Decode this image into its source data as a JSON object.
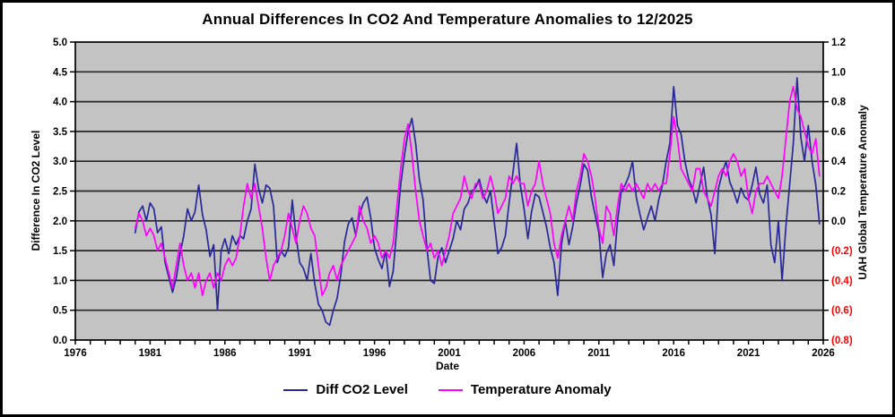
{
  "chart_data": {
    "type": "line",
    "title": "Annual Differences In CO2  And Temperature Anomalies to 12/2025",
    "grid": "horizontal-only",
    "legend_position": "bottom-center",
    "plot_background": "#c3c3c3",
    "gridline_color": "#262626",
    "axis_color": "#000000",
    "x_axis": {
      "title": "Date",
      "min": 1976,
      "max": 2026,
      "minor_step": 1,
      "major_step": 5,
      "tick_labels": [
        "1976",
        "1981",
        "1986",
        "1991",
        "1996",
        "2001",
        "2006",
        "2011",
        "2016",
        "2021",
        "2026"
      ]
    },
    "y_left": {
      "title": "Difference In CO2 Level",
      "min": 0,
      "max": 5,
      "step": 0.5,
      "tick_labels": [
        "0.0",
        "0.5",
        "1.0",
        "1.5",
        "2.0",
        "2.5",
        "3.0",
        "3.5",
        "4.0",
        "4.5",
        "5.0"
      ]
    },
    "y_right": {
      "title": "UAH Global Temperature Anomaly",
      "min": -0.8,
      "max": 1.2,
      "step": 0.2,
      "tick_labels": [
        "(0.8)",
        "(0.6)",
        "(0.4)",
        "(0.2)",
        "0.0",
        "0.2",
        "0.4",
        "0.6",
        "0.8",
        "1.0",
        "1.2"
      ],
      "negative_label_color": "#ff0000"
    },
    "x_start": 1980.0,
    "x_step": 0.25,
    "series": [
      {
        "name": "Diff CO2 Level",
        "axis": "left",
        "color": "#28289b",
        "values": [
          1.8,
          2.15,
          2.25,
          2.0,
          2.3,
          2.2,
          1.8,
          1.9,
          1.3,
          1.05,
          0.8,
          1.05,
          1.45,
          1.75,
          2.2,
          2.0,
          2.15,
          2.6,
          2.1,
          1.85,
          1.4,
          1.6,
          0.5,
          1.5,
          1.7,
          1.45,
          1.75,
          1.6,
          1.75,
          1.7,
          2.0,
          2.2,
          2.95,
          2.55,
          2.3,
          2.6,
          2.55,
          2.25,
          1.3,
          1.5,
          1.4,
          1.55,
          2.35,
          1.75,
          1.3,
          1.2,
          1.0,
          1.45,
          0.95,
          0.6,
          0.5,
          0.3,
          0.25,
          0.5,
          0.7,
          1.1,
          1.65,
          1.95,
          2.05,
          1.75,
          2.1,
          2.3,
          2.4,
          2.05,
          1.55,
          1.35,
          1.2,
          1.5,
          0.9,
          1.15,
          1.9,
          2.6,
          3.1,
          3.5,
          3.72,
          3.3,
          2.7,
          2.35,
          1.55,
          1.0,
          0.95,
          1.4,
          1.55,
          1.3,
          1.5,
          1.7,
          2.0,
          1.85,
          2.2,
          2.3,
          2.5,
          2.55,
          2.7,
          2.45,
          2.3,
          2.5,
          2.0,
          1.45,
          1.55,
          1.75,
          2.3,
          2.8,
          3.3,
          2.6,
          2.2,
          1.7,
          2.15,
          2.45,
          2.4,
          2.15,
          1.9,
          1.55,
          1.3,
          0.75,
          1.6,
          2.0,
          1.6,
          1.9,
          2.3,
          2.6,
          2.95,
          2.85,
          2.4,
          2.1,
          1.8,
          1.05,
          1.45,
          1.6,
          1.25,
          2.0,
          2.5,
          2.6,
          2.75,
          3.0,
          2.4,
          2.1,
          1.85,
          2.05,
          2.25,
          2.0,
          2.35,
          2.6,
          3.0,
          3.3,
          4.25,
          3.6,
          3.45,
          3.0,
          2.7,
          2.55,
          2.3,
          2.6,
          2.9,
          2.4,
          2.1,
          1.45,
          2.55,
          2.8,
          3.0,
          2.65,
          2.5,
          2.3,
          2.55,
          2.4,
          2.35,
          2.6,
          2.9,
          2.45,
          2.3,
          2.6,
          1.6,
          1.3,
          2.0,
          1.0,
          1.9,
          2.6,
          3.3,
          4.4,
          3.4,
          3.0,
          3.6,
          3.0,
          2.6,
          1.95
        ]
      },
      {
        "name": "Temperature Anomaly",
        "axis": "right",
        "color": "#ff00ff",
        "values": [
          -0.05,
          0.05,
          0.0,
          -0.1,
          -0.05,
          -0.1,
          -0.2,
          -0.15,
          -0.25,
          -0.35,
          -0.45,
          -0.3,
          -0.15,
          -0.3,
          -0.4,
          -0.35,
          -0.45,
          -0.35,
          -0.5,
          -0.4,
          -0.35,
          -0.45,
          -0.35,
          -0.4,
          -0.3,
          -0.25,
          -0.3,
          -0.25,
          -0.1,
          0.1,
          0.25,
          0.15,
          0.25,
          0.1,
          -0.05,
          -0.25,
          -0.4,
          -0.3,
          -0.25,
          -0.2,
          -0.1,
          0.05,
          -0.05,
          -0.15,
          0.0,
          0.1,
          0.05,
          -0.05,
          -0.1,
          -0.3,
          -0.5,
          -0.45,
          -0.35,
          -0.3,
          -0.4,
          -0.3,
          -0.25,
          -0.2,
          -0.15,
          -0.1,
          0.1,
          0.0,
          -0.05,
          -0.15,
          -0.1,
          -0.15,
          -0.25,
          -0.2,
          -0.25,
          -0.15,
          0.1,
          0.35,
          0.55,
          0.65,
          0.45,
          0.2,
          0.0,
          -0.1,
          -0.2,
          -0.15,
          -0.25,
          -0.2,
          -0.3,
          -0.2,
          -0.1,
          0.05,
          0.1,
          0.15,
          0.3,
          0.2,
          0.15,
          0.25,
          0.25,
          0.15,
          0.2,
          0.3,
          0.2,
          0.05,
          0.1,
          0.15,
          0.3,
          0.25,
          0.3,
          0.25,
          0.25,
          0.1,
          0.2,
          0.25,
          0.4,
          0.25,
          0.15,
          0.05,
          -0.15,
          -0.25,
          -0.1,
          0.0,
          0.1,
          0.0,
          0.2,
          0.3,
          0.45,
          0.4,
          0.3,
          0.15,
          -0.05,
          -0.15,
          0.1,
          0.05,
          -0.1,
          0.1,
          0.25,
          0.2,
          0.25,
          0.2,
          0.25,
          0.2,
          0.15,
          0.25,
          0.2,
          0.25,
          0.2,
          0.25,
          0.25,
          0.45,
          0.7,
          0.55,
          0.35,
          0.3,
          0.25,
          0.2,
          0.35,
          0.35,
          0.2,
          0.15,
          0.1,
          0.2,
          0.3,
          0.35,
          0.3,
          0.4,
          0.45,
          0.4,
          0.3,
          0.35,
          0.15,
          0.05,
          0.2,
          0.25,
          0.25,
          0.3,
          0.25,
          0.2,
          0.15,
          0.3,
          0.55,
          0.8,
          0.9,
          0.75,
          0.7,
          0.6,
          0.5,
          0.45,
          0.55,
          0.3
        ]
      }
    ]
  }
}
